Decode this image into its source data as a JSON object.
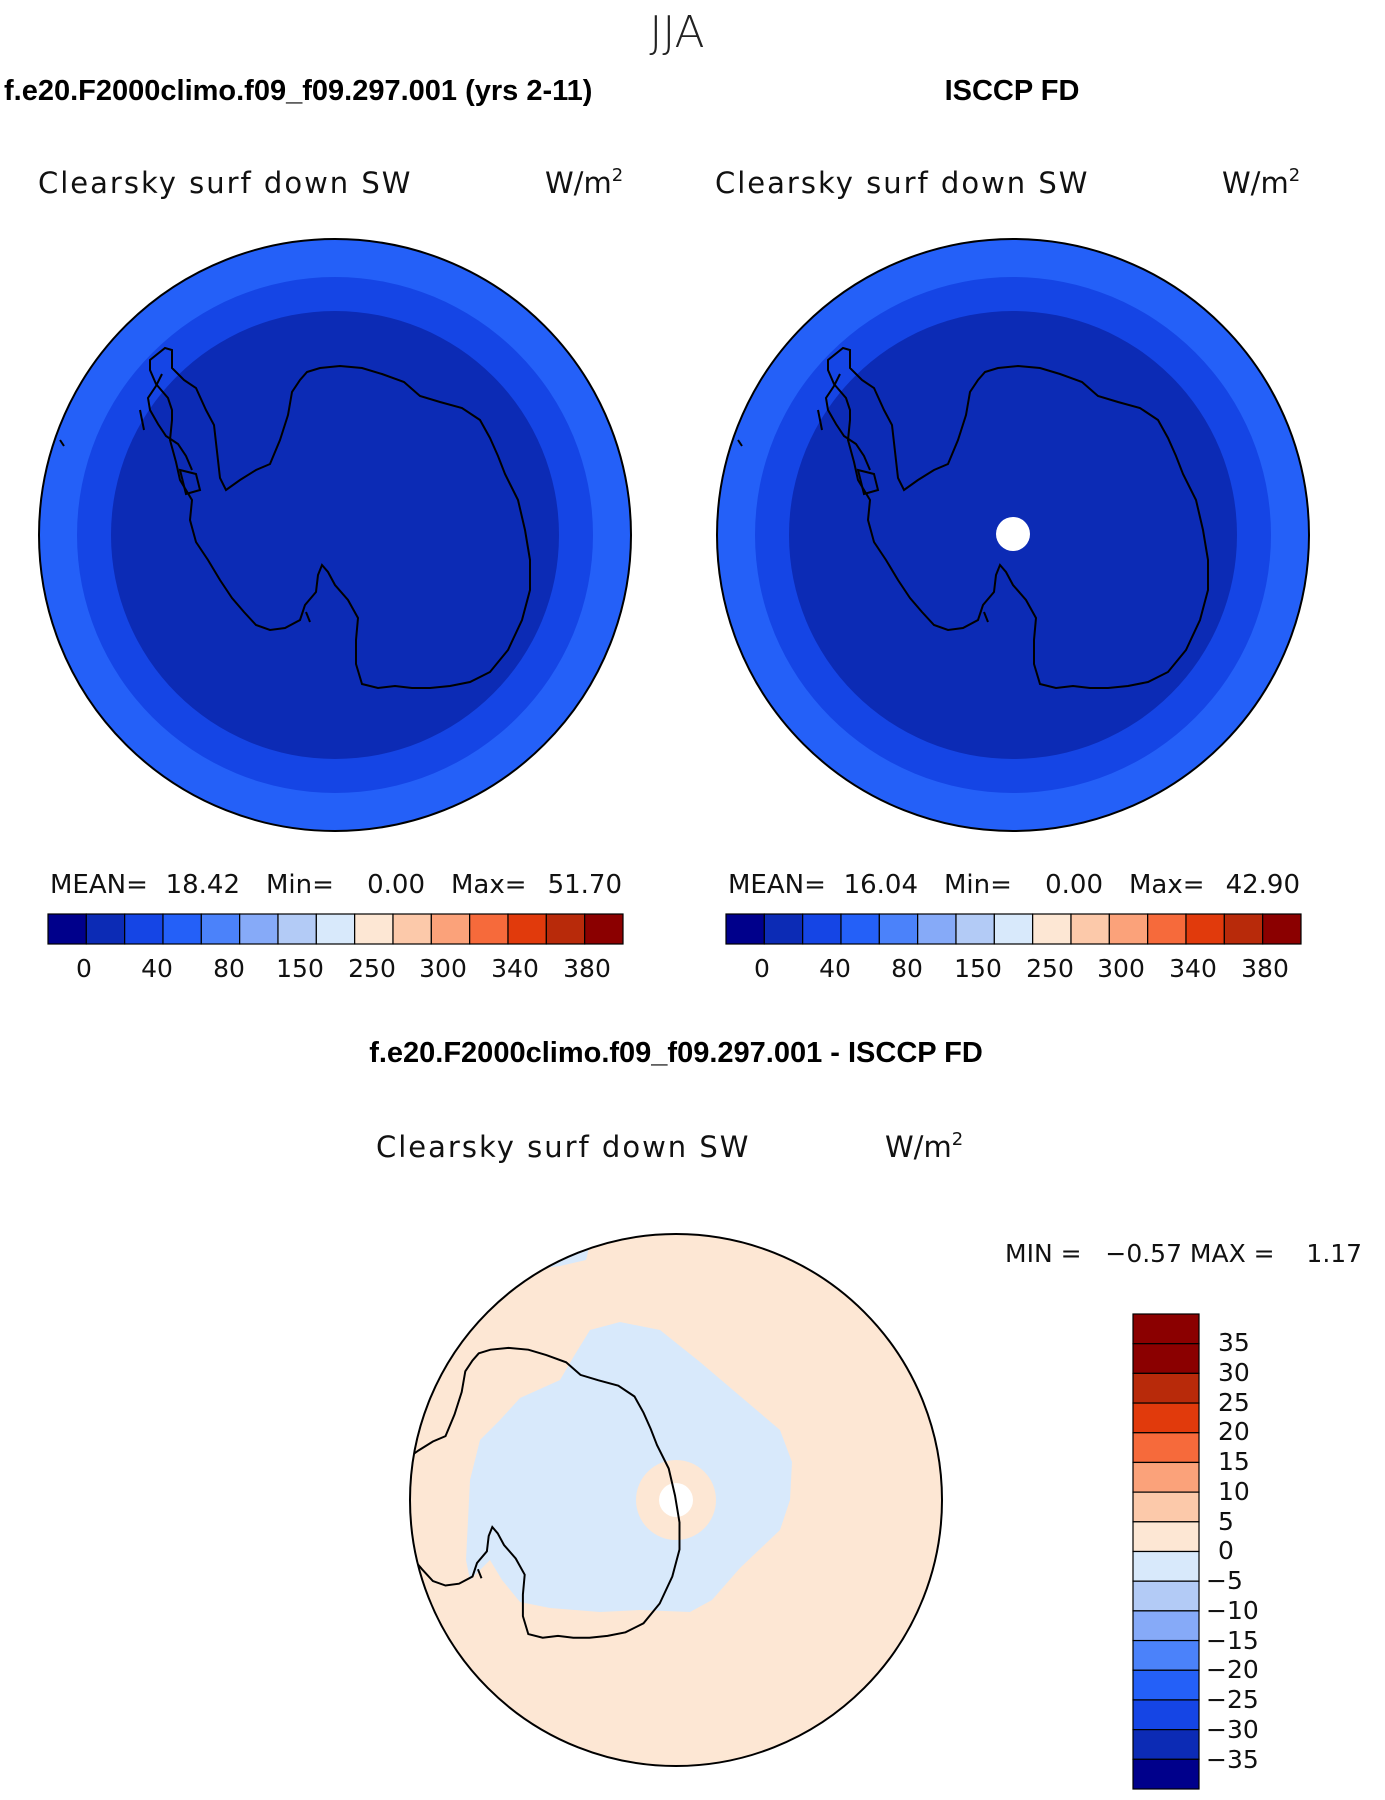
{
  "figure_title": "JJA",
  "colors": {
    "scale14": [
      "#00008b",
      "#0c2bb5",
      "#1545e5",
      "#2460f8",
      "#4b82fa",
      "#86aaf8",
      "#b3cbf6",
      "#d8e9fb",
      "#fde7d4",
      "#fcc9aa",
      "#fba27a",
      "#f66a3b",
      "#e13a0c",
      "#b82a0a",
      "#8b0000"
    ],
    "diff16": [
      "#00008b",
      "#0c2bb5",
      "#1545e5",
      "#2460f8",
      "#4b82fa",
      "#86aaf8",
      "#b3cbf6",
      "#d8e9fb",
      "#fde7d4",
      "#fcc9aa",
      "#fba27a",
      "#f66a3b",
      "#e13a0c",
      "#b82a0a",
      "#8b0000"
    ],
    "coast": "#000000"
  },
  "chart_data": [
    {
      "type": "heatmap",
      "projection": "south-polar-stereographic",
      "case_title": "f.e20.F2000climo.f09_f09.297.001 (yrs 2-11)",
      "field": "Clearsky surf down SW",
      "units_base": "W/m",
      "units_exp": "2",
      "stats": {
        "mean_label": "MEAN=",
        "mean": "18.42",
        "min_label": "Min=",
        "min": "0.00",
        "max_label": "Max=",
        "max": "51.70"
      },
      "levels": [
        "0",
        "40",
        "80",
        "150",
        "250",
        "300",
        "340",
        "380"
      ],
      "zone_bins": [
        2,
        3,
        4
      ]
    },
    {
      "type": "heatmap",
      "projection": "south-polar-stereographic",
      "case_title": "ISCCP FD",
      "field": "Clearsky surf down SW",
      "units_base": "W/m",
      "units_exp": "2",
      "stats": {
        "mean_label": "MEAN=",
        "mean": "16.04",
        "min_label": "Min=",
        "min": "0.00",
        "max_label": "Max=",
        "max": "42.90"
      },
      "levels": [
        "0",
        "40",
        "80",
        "150",
        "250",
        "300",
        "340",
        "380"
      ],
      "zone_bins": [
        2,
        3,
        4
      ],
      "missing_pole": true
    },
    {
      "type": "heatmap",
      "projection": "south-polar-stereographic",
      "case_title": "f.e20.F2000climo.f09_f09.297.001 - ISCCP FD",
      "field": "Clearsky surf down SW",
      "units_base": "W/m",
      "units_exp": "2",
      "stats": {
        "text": "MIN =   −0.57 MAX =    1.17",
        "min": -0.57,
        "max": 1.17
      },
      "levels": [
        "35",
        "30",
        "25",
        "20",
        "15",
        "10",
        "5",
        "0",
        "−5",
        "−10",
        "−15",
        "−20",
        "−25",
        "−30",
        "−35"
      ],
      "dominant_bins": [
        -5,
        0,
        0,
        5
      ]
    }
  ]
}
